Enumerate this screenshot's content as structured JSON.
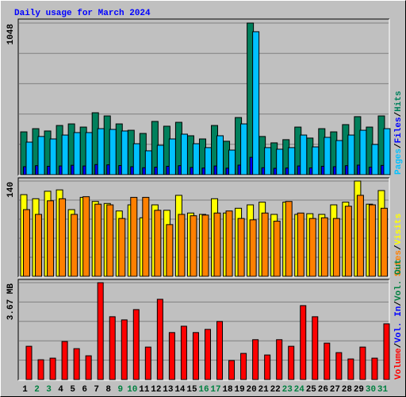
{
  "chart_data": {
    "type": "bar",
    "title": "Daily usage for March 2024",
    "legend_separator": "/",
    "categories": [
      "1",
      "2",
      "3",
      "4",
      "5",
      "6",
      "7",
      "8",
      "9",
      "10",
      "11",
      "12",
      "13",
      "14",
      "15",
      "16",
      "17",
      "18",
      "19",
      "20",
      "21",
      "22",
      "23",
      "24",
      "25",
      "26",
      "27",
      "28",
      "29",
      "30",
      "31"
    ],
    "category_colors": [
      "#000000",
      "#008040",
      "#008040",
      "#000000",
      "#000000",
      "#000000",
      "#000000",
      "#000000",
      "#008040",
      "#008040",
      "#000000",
      "#000000",
      "#000000",
      "#000000",
      "#000000",
      "#008040",
      "#008040",
      "#000000",
      "#000000",
      "#000000",
      "#000000",
      "#000000",
      "#008040",
      "#008040",
      "#000000",
      "#000000",
      "#000000",
      "#000000",
      "#000000",
      "#008040",
      "#008040"
    ],
    "panels": [
      {
        "ylim": [
          0,
          1048
        ],
        "yticks": [
          1048
        ],
        "series": [
          {
            "name": "Pages",
            "color": "#00c0ff",
            "values": [
              225,
              264,
              247,
              274,
              291,
              291,
              318,
              313,
              302,
              214,
              165,
              203,
              247,
              280,
              214,
              187,
              269,
              170,
              351,
              988,
              187,
              176,
              187,
              274,
              192,
              258,
              236,
              274,
              307,
              209,
              318
            ]
          },
          {
            "name": "Files",
            "color": "#0000ff",
            "values": [
              55,
              62,
              58,
              60,
              65,
              60,
              70,
              68,
              63,
              55,
              48,
              52,
              58,
              62,
              50,
              46,
              60,
              45,
              66,
              120,
              48,
              44,
              46,
              60,
              47,
              58,
              55,
              62,
              66,
              52,
              64
            ]
          },
          {
            "name": "Hits",
            "color": "#00805c",
            "values": [
              296,
              318,
              302,
              340,
              351,
              329,
              428,
              406,
              351,
              307,
              285,
              368,
              335,
              362,
              269,
              247,
              340,
              231,
              395,
              1048,
              264,
              220,
              242,
              329,
              253,
              318,
              296,
              346,
              401,
              329,
              406
            ]
          }
        ]
      },
      {
        "ylim": [
          0,
          140
        ],
        "yticks": [
          140
        ],
        "series": [
          {
            "name": "Sites",
            "color": "#ff8000",
            "values": [
              98,
              91,
              111,
              114,
              91,
              117,
              106,
              105,
              85,
              116,
              116,
              97,
              76,
              91,
              89,
              90,
              93,
              96,
              85,
              83,
              93,
              81,
              110,
              93,
              85,
              86,
              85,
              103,
              119,
              105,
              100
            ]
          },
          {
            "name": "Visits",
            "color": "#ffff00",
            "values": [
              120,
              114,
              125,
              127,
              98,
              116,
              110,
              107,
              96,
              105,
              86,
              105,
              97,
              119,
              93,
              91,
              114,
              93,
              100,
              105,
              109,
              91,
              109,
              91,
              92,
              91,
              105,
              109,
              140,
              106,
              126
            ]
          }
        ]
      },
      {
        "ylim": [
          0,
          3.67
        ],
        "yticks": [
          {
            "value": 3.67,
            "label": "3.67 MB"
          }
        ],
        "series": [
          {
            "name": "Volume",
            "color": "#ff0000",
            "values": [
              1.26,
              0.75,
              0.81,
              1.44,
              1.17,
              0.9,
              3.67,
              2.38,
              2.26,
              2.65,
              1.23,
              3.04,
              1.78,
              2.02,
              1.78,
              1.9,
              2.2,
              0.72,
              0.99,
              1.51,
              0.93,
              1.51,
              1.26,
              2.8,
              2.38,
              1.38,
              1.02,
              0.78,
              1.23,
              0.81,
              2.11
            ]
          },
          {
            "name": "Vol. In",
            "color": "#0000ff",
            "values": [
              0,
              0,
              0,
              0,
              0,
              0,
              0,
              0,
              0,
              0,
              0,
              0,
              0,
              0,
              0,
              0,
              0,
              0,
              0,
              0,
              0,
              0,
              0,
              0,
              0,
              0,
              0,
              0,
              0,
              0,
              0
            ]
          },
          {
            "name": "Vol. Out",
            "color": "#008040",
            "values": [
              0,
              0,
              0,
              0,
              0,
              0,
              0,
              0,
              0,
              0,
              0,
              0,
              0,
              0,
              0,
              0,
              0,
              0,
              0,
              0,
              0,
              0,
              0,
              0,
              0,
              0,
              0,
              0,
              0,
              0,
              0
            ]
          }
        ]
      }
    ]
  }
}
